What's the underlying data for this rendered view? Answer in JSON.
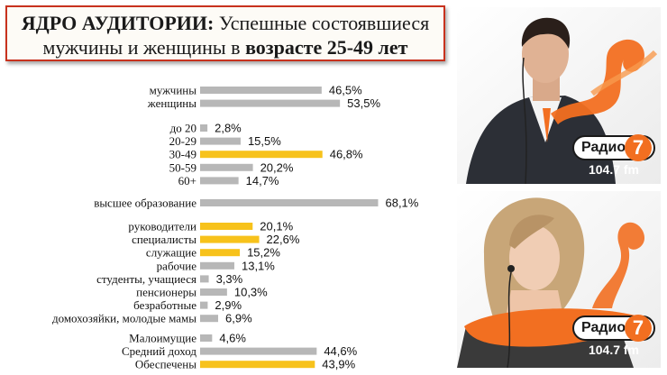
{
  "title": {
    "line1_bold": "ЯДРО АУДИТОРИИ:",
    "line1_rest": " Успешные состоявшиеся",
    "line2_rest": "мужчины и женщины в ",
    "line2_bold": "возрасте 25-49 лет"
  },
  "colors": {
    "gray": "#b7b7b7",
    "yellow": "#f7c21b",
    "orange": "#f26f21",
    "border": "#c8321e"
  },
  "chart_data": {
    "type": "bar",
    "orientation": "horizontal",
    "xlim": [
      0,
      100
    ],
    "groups": [
      {
        "items": [
          {
            "label": "мужчины",
            "value": 46.5,
            "value_label": "46,5%",
            "color": "gray"
          },
          {
            "label": "женщины",
            "value": 53.5,
            "value_label": "53,5%",
            "color": "gray"
          }
        ]
      },
      {
        "items": [
          {
            "label": "до 20",
            "value": 2.8,
            "value_label": "2,8%",
            "color": "gray"
          },
          {
            "label": "20-29",
            "value": 15.5,
            "value_label": "15,5%",
            "color": "gray"
          },
          {
            "label": "30-49",
            "value": 46.8,
            "value_label": "46,8%",
            "color": "yellow"
          },
          {
            "label": "50-59",
            "value": 20.2,
            "value_label": "20,2%",
            "color": "gray"
          },
          {
            "label": "60+",
            "value": 14.7,
            "value_label": "14,7%",
            "color": "gray"
          }
        ]
      },
      {
        "items": [
          {
            "label": "высшее образование",
            "value": 68.1,
            "value_label": "68,1%",
            "color": "gray"
          }
        ]
      },
      {
        "items": [
          {
            "label": "руководители",
            "value": 20.1,
            "value_label": "20,1%",
            "color": "yellow"
          },
          {
            "label": "специалисты",
            "value": 22.6,
            "value_label": "22,6%",
            "color": "yellow"
          },
          {
            "label": "служащие",
            "value": 15.2,
            "value_label": "15,2%",
            "color": "yellow"
          },
          {
            "label": "рабочие",
            "value": 13.1,
            "value_label": "13,1%",
            "color": "gray"
          },
          {
            "label": "студенты, учащиеся",
            "value": 3.3,
            "value_label": "3,3%",
            "color": "gray"
          },
          {
            "label": "пенсионеры",
            "value": 10.3,
            "value_label": "10,3%",
            "color": "gray"
          },
          {
            "label": "безработные",
            "value": 2.9,
            "value_label": "2,9%",
            "color": "gray"
          },
          {
            "label": "домохозяйки, молодые мамы",
            "value": 6.9,
            "value_label": "6,9%",
            "color": "gray"
          }
        ]
      },
      {
        "items": [
          {
            "label": "Малоимущие",
            "value": 4.6,
            "value_label": "4,6%",
            "color": "gray"
          },
          {
            "label": "Средний доход",
            "value": 44.6,
            "value_label": "44,6%",
            "color": "gray"
          },
          {
            "label": "Обеспечены",
            "value": 43.9,
            "value_label": "43,9%",
            "color": "yellow"
          }
        ]
      }
    ]
  },
  "ads": [
    {
      "logo_name": "Радио",
      "logo_number": "7",
      "frequency": "104.7 fm"
    },
    {
      "logo_name": "Радио",
      "logo_number": "7",
      "frequency": "104.7 fm"
    }
  ]
}
